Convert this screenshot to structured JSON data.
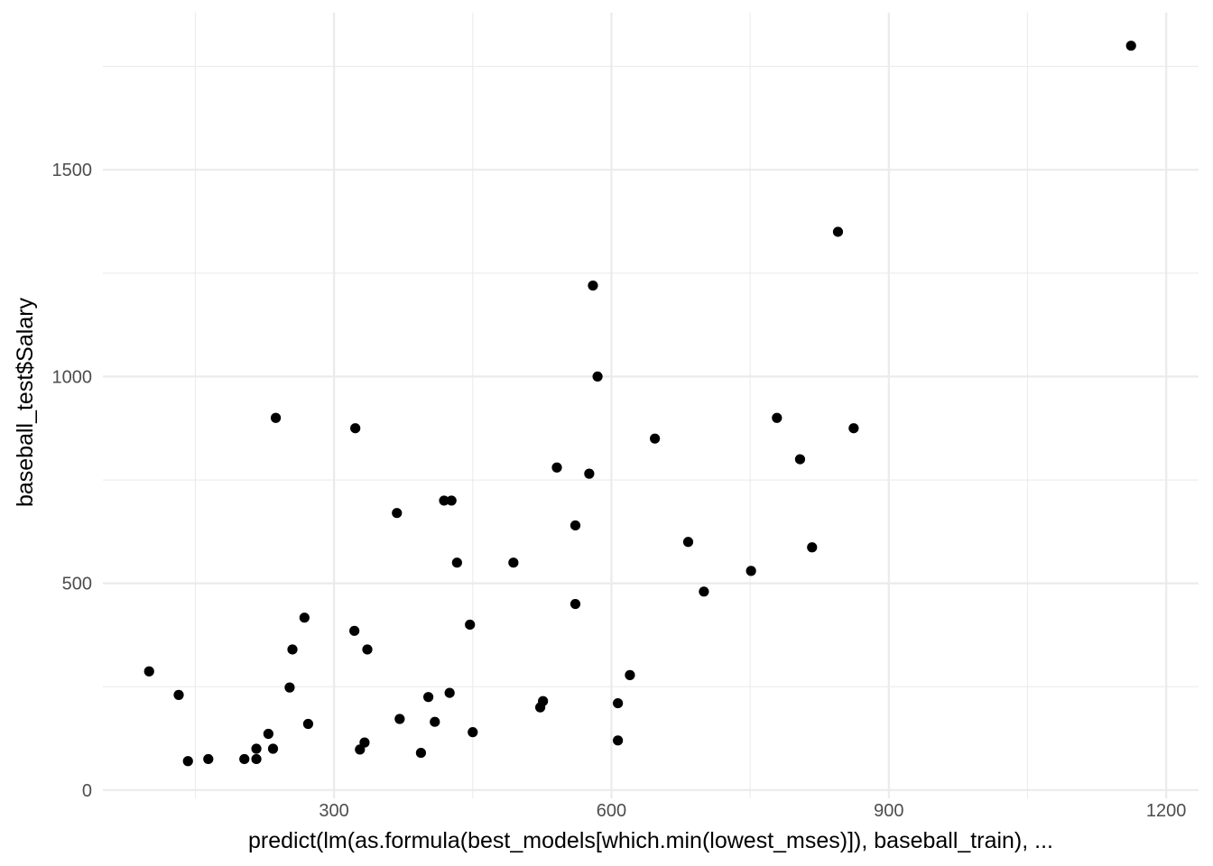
{
  "chart_data": {
    "type": "scatter",
    "title": "",
    "xlabel": "predict(lm(as.formula(best_models[which.min(lowest_mses)]), baseball_train), ...",
    "ylabel": "baseball_test$Salary",
    "xlim": [
      50,
      1235
    ],
    "ylim": [
      -20,
      1880
    ],
    "x_ticks": [
      300,
      600,
      900,
      1200
    ],
    "x_tick_labels": [
      "300",
      "600",
      "900",
      "1200"
    ],
    "x_minor": [
      150,
      450,
      750,
      1050
    ],
    "y_ticks": [
      0,
      500,
      1000,
      1500
    ],
    "y_tick_labels": [
      "0",
      "500",
      "1000",
      "1500"
    ],
    "y_minor": [
      250,
      750,
      1250,
      1750
    ],
    "grid": true,
    "point_color": "#000000",
    "points": [
      {
        "x": 100,
        "y": 287
      },
      {
        "x": 132,
        "y": 230
      },
      {
        "x": 142,
        "y": 70
      },
      {
        "x": 164,
        "y": 75
      },
      {
        "x": 203,
        "y": 75
      },
      {
        "x": 216,
        "y": 100
      },
      {
        "x": 216,
        "y": 75
      },
      {
        "x": 229,
        "y": 136
      },
      {
        "x": 234,
        "y": 100
      },
      {
        "x": 237,
        "y": 900
      },
      {
        "x": 252,
        "y": 248
      },
      {
        "x": 255,
        "y": 340
      },
      {
        "x": 268,
        "y": 417
      },
      {
        "x": 272,
        "y": 160
      },
      {
        "x": 322,
        "y": 385
      },
      {
        "x": 323,
        "y": 875
      },
      {
        "x": 328,
        "y": 98
      },
      {
        "x": 333,
        "y": 115
      },
      {
        "x": 336,
        "y": 340
      },
      {
        "x": 368,
        "y": 670
      },
      {
        "x": 371,
        "y": 172
      },
      {
        "x": 394,
        "y": 90
      },
      {
        "x": 402,
        "y": 225
      },
      {
        "x": 409,
        "y": 165
      },
      {
        "x": 419,
        "y": 700
      },
      {
        "x": 425,
        "y": 235
      },
      {
        "x": 427,
        "y": 700
      },
      {
        "x": 433,
        "y": 550
      },
      {
        "x": 447,
        "y": 400
      },
      {
        "x": 450,
        "y": 140
      },
      {
        "x": 494,
        "y": 550
      },
      {
        "x": 523,
        "y": 200
      },
      {
        "x": 526,
        "y": 215
      },
      {
        "x": 541,
        "y": 780
      },
      {
        "x": 561,
        "y": 640
      },
      {
        "x": 561,
        "y": 450
      },
      {
        "x": 576,
        "y": 765
      },
      {
        "x": 580,
        "y": 1220
      },
      {
        "x": 585,
        "y": 1000
      },
      {
        "x": 607,
        "y": 210
      },
      {
        "x": 607,
        "y": 120
      },
      {
        "x": 620,
        "y": 278
      },
      {
        "x": 647,
        "y": 850
      },
      {
        "x": 683,
        "y": 600
      },
      {
        "x": 700,
        "y": 480
      },
      {
        "x": 751,
        "y": 530
      },
      {
        "x": 779,
        "y": 900
      },
      {
        "x": 804,
        "y": 800
      },
      {
        "x": 817,
        "y": 587
      },
      {
        "x": 845,
        "y": 1350
      },
      {
        "x": 862,
        "y": 875
      },
      {
        "x": 1162,
        "y": 1800
      }
    ]
  }
}
